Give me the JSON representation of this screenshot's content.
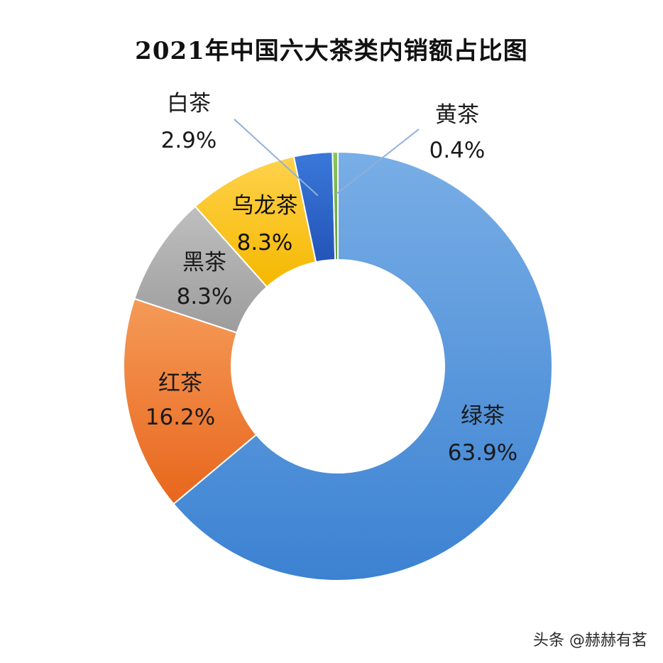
{
  "chart_data": {
    "type": "pie",
    "title": "2021年中国六大茶类内销额占比图",
    "slices": [
      {
        "name": "绿茶",
        "value": 63.9,
        "label": "63.9%",
        "color": "#4A90D9"
      },
      {
        "name": "红茶",
        "value": 16.2,
        "label": "16.2%",
        "color": "#ED7D31"
      },
      {
        "name": "黑茶",
        "value": 8.3,
        "label": "8.3%",
        "color": "#A5A5A5"
      },
      {
        "name": "乌龙茶",
        "value": 8.3,
        "label": "8.3%",
        "color": "#FFC000"
      },
      {
        "name": "白茶",
        "value": 2.9,
        "label": "2.9%",
        "color": "#2E64C8"
      },
      {
        "name": "黄茶",
        "value": 0.4,
        "label": "0.4%",
        "color": "#70AD47"
      }
    ],
    "style": "donut",
    "legend": "none"
  },
  "watermark": "头条 @赫赫有茗"
}
